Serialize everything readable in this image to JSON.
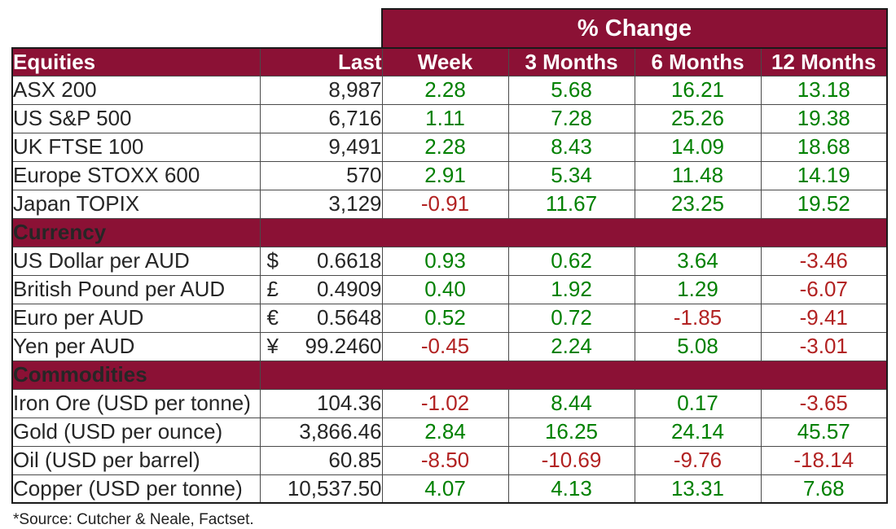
{
  "banner": {
    "label": "% Change"
  },
  "chart_data": {
    "type": "table",
    "columns": [
      "Equities",
      "Last",
      "Week",
      "3 Months",
      "6 Months",
      "12 Months"
    ],
    "change_column_keys": [
      "week",
      "3-months",
      "6-months",
      "12-months"
    ],
    "sections": [
      {
        "label": "",
        "rows": [
          {
            "name": "ASX 200",
            "last": "8,987",
            "changes": [
              "2.28",
              "5.68",
              "16.21",
              "13.18"
            ]
          },
          {
            "name": "US S&P 500",
            "last": "6,716",
            "changes": [
              "1.11",
              "7.28",
              "25.26",
              "19.38"
            ]
          },
          {
            "name": "UK FTSE 100",
            "last": "9,491",
            "changes": [
              "2.28",
              "8.43",
              "14.09",
              "18.68"
            ]
          },
          {
            "name": "Europe STOXX 600",
            "last": "570",
            "changes": [
              "2.91",
              "5.34",
              "11.48",
              "14.19"
            ]
          },
          {
            "name": "Japan TOPIX",
            "last": "3,129",
            "changes": [
              "-0.91",
              "11.67",
              "23.25",
              "19.52"
            ]
          }
        ]
      },
      {
        "label": "Currency",
        "rows": [
          {
            "name": "US Dollar per AUD",
            "symbol": "$",
            "last": "0.6618",
            "changes": [
              "0.93",
              "0.62",
              "3.64",
              "-3.46"
            ]
          },
          {
            "name": "British Pound per AUD",
            "symbol": "£",
            "last": "0.4909",
            "changes": [
              "0.40",
              "1.92",
              "1.29",
              "-6.07"
            ]
          },
          {
            "name": "Euro per AUD",
            "symbol": "€",
            "last": "0.5648",
            "changes": [
              "0.52",
              "0.72",
              "-1.85",
              "-9.41"
            ]
          },
          {
            "name": "Yen per AUD",
            "symbol": "¥",
            "last": "99.2460",
            "changes": [
              "-0.45",
              "2.24",
              "5.08",
              "-3.01"
            ]
          }
        ]
      },
      {
        "label": "Commodities",
        "rows": [
          {
            "name": "Iron Ore (USD per tonne)",
            "last": "104.36",
            "changes": [
              "-1.02",
              "8.44",
              "0.17",
              "-3.65"
            ]
          },
          {
            "name": "Gold (USD per ounce)",
            "last": "3,866.46",
            "changes": [
              "2.84",
              "16.25",
              "24.14",
              "45.57"
            ]
          },
          {
            "name": "Oil (USD per barrel)",
            "last": "60.85",
            "changes": [
              "-8.50",
              "-10.69",
              "-9.76",
              "-18.14"
            ]
          },
          {
            "name": "Copper (USD per tonne)",
            "last": "10,537.50",
            "changes": [
              "4.07",
              "4.13",
              "13.31",
              "7.68"
            ]
          }
        ]
      }
    ]
  },
  "footer": {
    "text": "*Source: Cutcher & Neale, Factset."
  },
  "colors": {
    "maroon": "#8B1135",
    "positive": "#008000",
    "negative": "#B22222",
    "border_dark": "#1a1a1a",
    "grid": "#4a4a4a"
  }
}
